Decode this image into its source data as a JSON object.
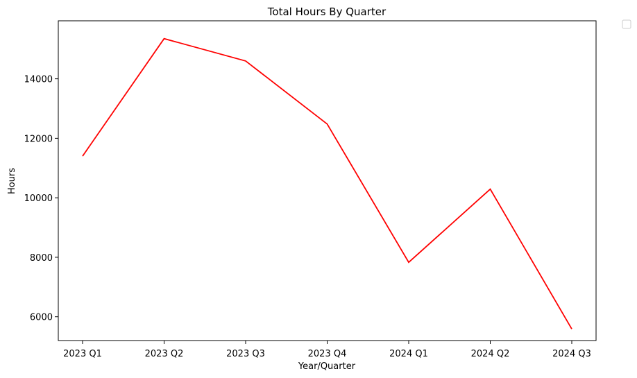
{
  "chart_data": {
    "type": "line",
    "title": "Total Hours By Quarter",
    "xlabel": "Year/Quarter",
    "ylabel": "Hours",
    "categories": [
      "2023 Q1",
      "2023 Q2",
      "2023 Q3",
      "2023 Q4",
      "2024 Q1",
      "2024 Q2",
      "2024 Q3"
    ],
    "series": [
      {
        "values": [
          11400,
          15350,
          14600,
          12480,
          7830,
          10290,
          5590
        ],
        "color": "#ff0000"
      }
    ],
    "yticks": [
      6000,
      8000,
      10000,
      12000,
      14000
    ],
    "ylim": [
      5200,
      15950
    ],
    "grid": false,
    "legend": "empty, top-right outside the plot area"
  }
}
